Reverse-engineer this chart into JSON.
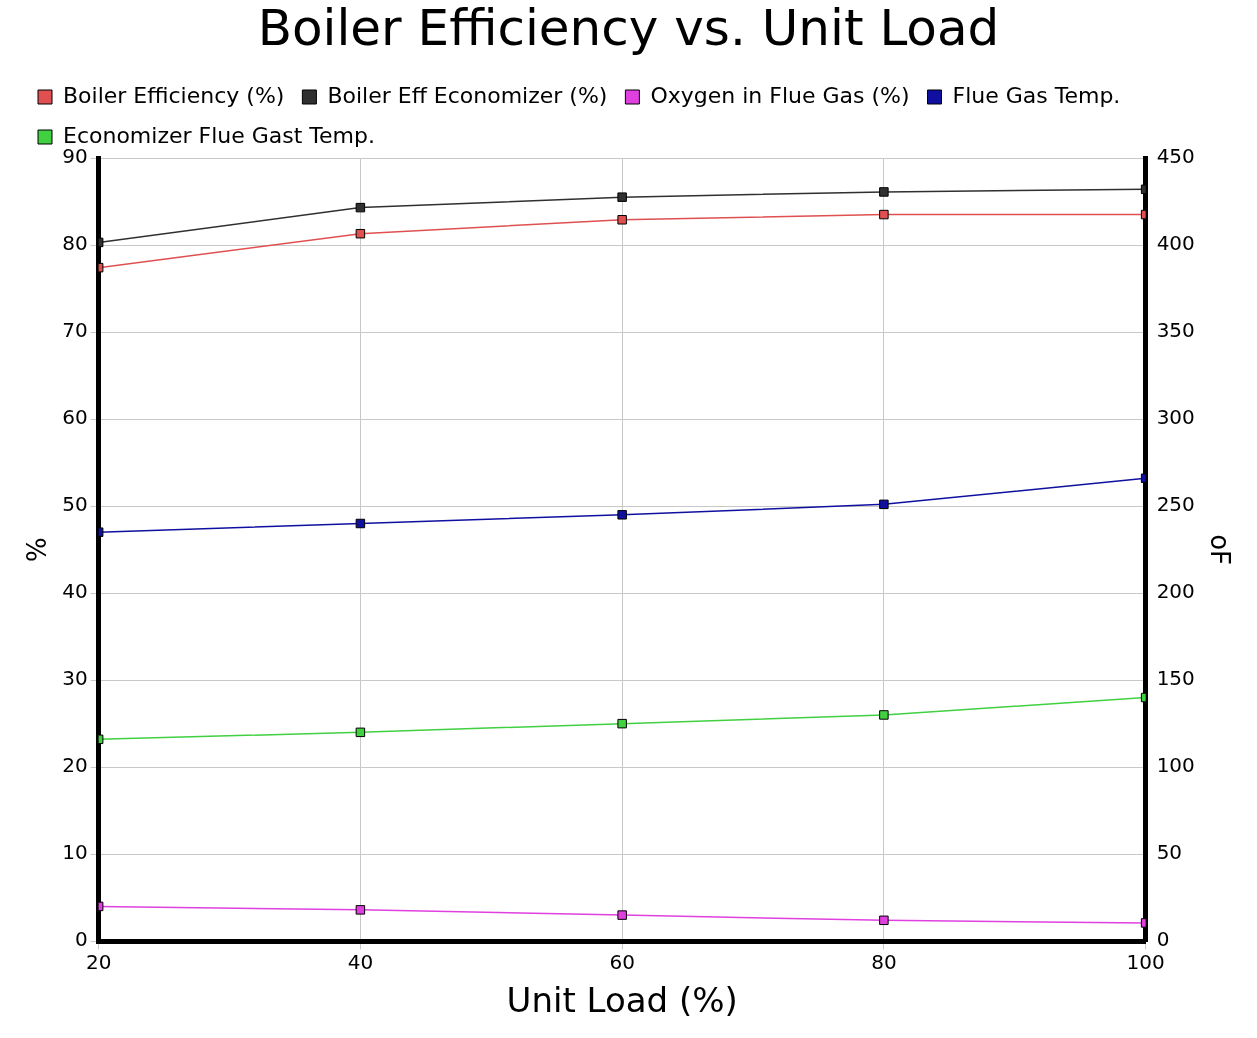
{
  "chart_data": {
    "type": "line",
    "title": "Boiler Efficiency vs. Unit Load",
    "xlabel": "Unit Load (%)",
    "ylabel": "%",
    "y2label": "oF",
    "x": [
      20,
      40,
      60,
      80,
      100
    ],
    "xlim": [
      20,
      100
    ],
    "xticks": [
      20,
      40,
      60,
      80,
      100
    ],
    "ylim": [
      0,
      90
    ],
    "yticks": [
      0,
      10,
      20,
      30,
      40,
      50,
      60,
      70,
      80,
      90
    ],
    "y2lim": [
      0,
      450
    ],
    "y2ticks": [
      0,
      50,
      100,
      150,
      200,
      250,
      300,
      350,
      400,
      450
    ],
    "grid": true,
    "legend": "top",
    "marker": "square",
    "line_style": "solid",
    "series": [
      {
        "name": "Boiler Efficiency (%)",
        "color": "#e05050",
        "values": [
          77.4,
          81.3,
          82.9,
          83.5,
          83.5
        ]
      },
      {
        "name": "Boiler Eff Economizer (%)",
        "color": "#303030",
        "values": [
          80.3,
          84.3,
          85.5,
          86.1,
          86.4
        ]
      },
      {
        "name": "Oxygen in Flue Gas (%)",
        "color": "#e040e0",
        "values": [
          4.0,
          3.6,
          3.0,
          2.4,
          2.1
        ]
      },
      {
        "name": "Flue Gas Temp.",
        "color": "#1010a0",
        "axis": "y2",
        "values": [
          235,
          240,
          245,
          251,
          266
        ]
      },
      {
        "name": "Economizer Flue Gast Temp.",
        "color": "#40d040",
        "axis": "y2",
        "values": [
          116,
          120,
          125,
          130,
          140
        ]
      }
    ]
  }
}
